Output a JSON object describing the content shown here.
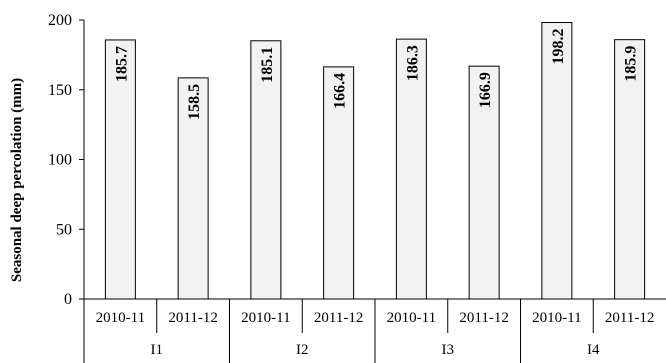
{
  "chart_data": {
    "type": "bar",
    "ylabel": "Seasonal deep percolation (mm)",
    "ylim": [
      0,
      200
    ],
    "yticks": [
      0,
      50,
      100,
      150,
      200
    ],
    "grid": false,
    "groups": [
      {
        "label": "I1",
        "categories": [
          "2010-11",
          "2011-12"
        ],
        "values": [
          185.7,
          158.5
        ],
        "value_labels": [
          "185.7",
          "158.5"
        ]
      },
      {
        "label": "I2",
        "categories": [
          "2010-11",
          "2011-12"
        ],
        "values": [
          185.1,
          166.4
        ],
        "value_labels": [
          "185.1",
          "166.4"
        ]
      },
      {
        "label": "I3",
        "categories": [
          "2010-11",
          "2011-12"
        ],
        "values": [
          186.3,
          166.9
        ],
        "value_labels": [
          "186.3",
          "166.9"
        ]
      },
      {
        "label": "I4",
        "categories": [
          "2010-11",
          "2011-12"
        ],
        "values": [
          198.2,
          185.9
        ],
        "value_labels": [
          "198.2",
          "185.9"
        ]
      }
    ],
    "bar_color": "#f2f2f2",
    "edge_color": "#000000"
  }
}
